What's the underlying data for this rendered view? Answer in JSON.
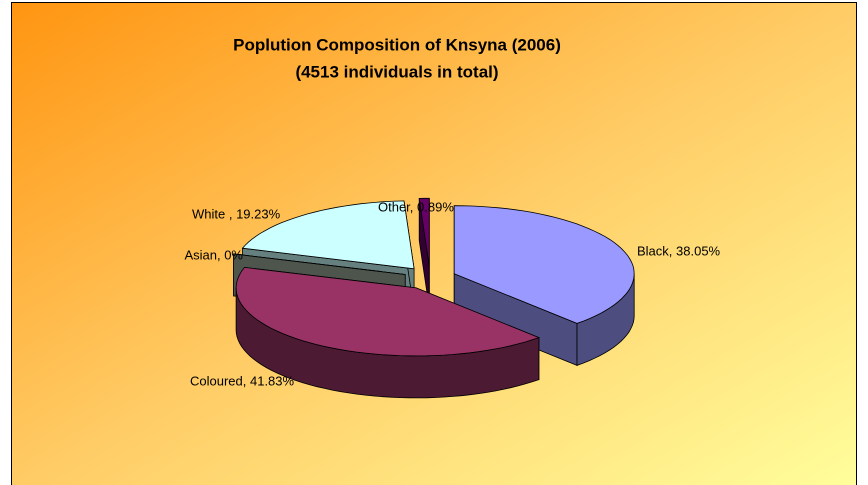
{
  "chart_data": {
    "type": "pie",
    "title": "Poplution Composition of Knsyna (2006)",
    "subtitle": "(4513 individuals in total)",
    "values": [
      38.05,
      41.83,
      0,
      19.23,
      0.89
    ],
    "value_labels": [
      "Black, 38.05%",
      "Coloured, 41.83%",
      "Asian, 0%",
      "White , 19.23%",
      "Other, 0.89%"
    ],
    "colors": [
      "#9999ff",
      "#993366",
      "#99aa99",
      "#ccffff",
      "#660066"
    ]
  }
}
